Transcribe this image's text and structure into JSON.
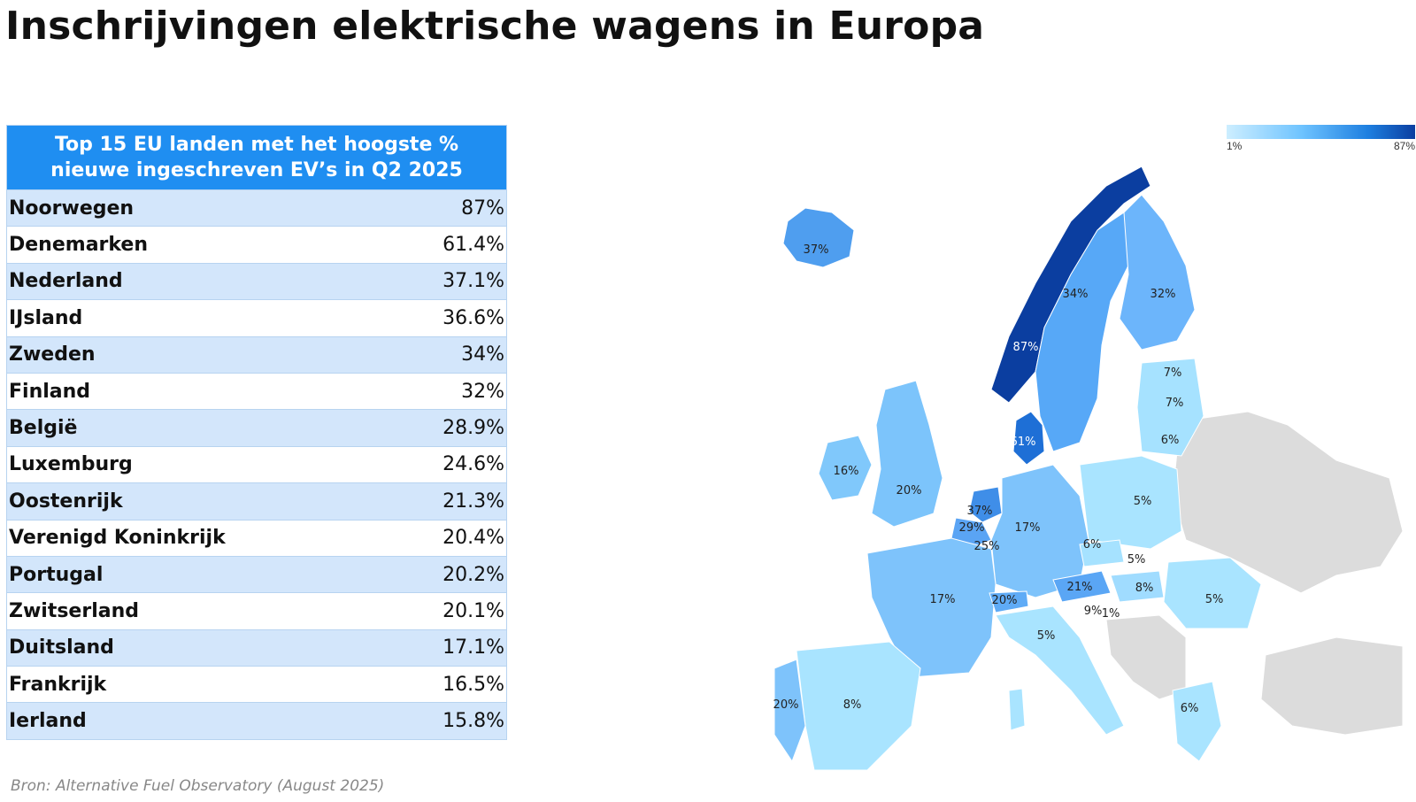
{
  "title": "Inschrijvingen elektrische wagens in Europa",
  "table": {
    "header_line1": "Top 15 EU landen met het hoogste %",
    "header_line2": "nieuwe ingeschreven EV’s in Q2 2025",
    "rows": [
      {
        "country": "Noorwegen",
        "value": "87%"
      },
      {
        "country": "Denemarken",
        "value": "61.4%"
      },
      {
        "country": "Nederland",
        "value": "37.1%"
      },
      {
        "country": "IJsland",
        "value": "36.6%"
      },
      {
        "country": "Zweden",
        "value": "34%"
      },
      {
        "country": "Finland",
        "value": "32%"
      },
      {
        "country": "België",
        "value": "28.9%"
      },
      {
        "country": "Luxemburg",
        "value": "24.6%"
      },
      {
        "country": "Oostenrijk",
        "value": "21.3%"
      },
      {
        "country": "Verenigd Koninkrijk",
        "value": "20.4%"
      },
      {
        "country": "Portugal",
        "value": "20.2%"
      },
      {
        "country": "Zwitserland",
        "value": "20.1%"
      },
      {
        "country": "Duitsland",
        "value": "17.1%"
      },
      {
        "country": "Frankrijk",
        "value": "16.5%"
      },
      {
        "country": "Ierland",
        "value": "15.8%"
      }
    ]
  },
  "source": "Bron: Alternative Fuel Observatory (August 2025)",
  "legend": {
    "min_label": "1%",
    "max_label": "87%",
    "min_color": "#cdeeff",
    "max_color": "#0b3ea0"
  },
  "chart_data": {
    "type": "table",
    "title": "Top 15 EU landen met het hoogste % nieuwe ingeschreven EV’s in Q2 2025",
    "categories": [
      "Noorwegen",
      "Denemarken",
      "Nederland",
      "IJsland",
      "Zweden",
      "Finland",
      "België",
      "Luxemburg",
      "Oostenrijk",
      "Verenigd Koninkrijk",
      "Portugal",
      "Zwitserland",
      "Duitsland",
      "Frankrijk",
      "Ierland"
    ],
    "values": [
      87,
      61.4,
      37.1,
      36.6,
      34,
      32,
      28.9,
      24.6,
      21.3,
      20.4,
      20.2,
      20.1,
      17.1,
      16.5,
      15.8
    ],
    "map_labels": [
      "87%",
      "61%",
      "37%",
      "29%",
      "25%",
      "37%",
      "34%",
      "32%",
      "7%",
      "7%",
      "6%",
      "16%",
      "20%",
      "17%",
      "5%",
      "6%",
      "5%",
      "21%",
      "8%",
      "5%",
      "17%",
      "20%",
      "9%",
      "1%",
      "5%",
      "20%",
      "8%",
      "6%"
    ]
  }
}
